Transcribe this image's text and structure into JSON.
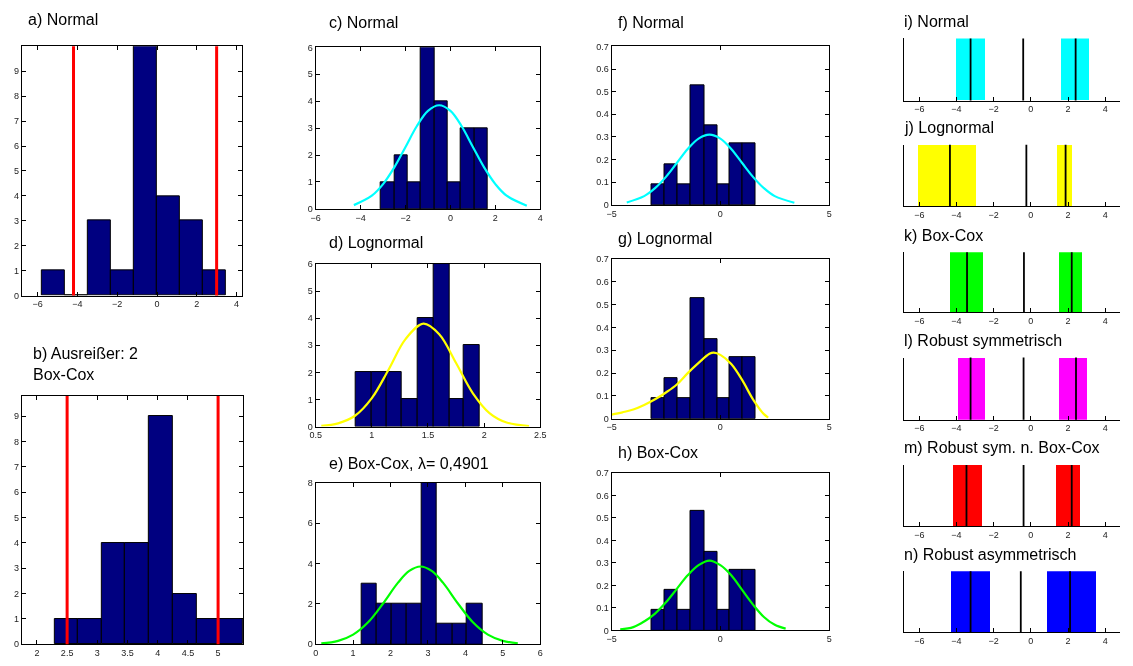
{
  "chart_data": [
    {
      "type": "histogram",
      "title": "a) Normal",
      "bins": [
        -5.79,
        -4.63,
        -3.47,
        -2.31,
        -1.16,
        0,
        1.16,
        2.31,
        3.47
      ],
      "values": [
        1,
        0,
        3,
        1,
        10,
        4,
        3,
        1
      ],
      "color": "#000080",
      "xlim": [
        -6.8,
        4.3
      ],
      "xticks": [
        -6,
        -4,
        -2,
        0,
        2,
        4
      ],
      "ylim": [
        0,
        10
      ],
      "yticks": [
        0,
        1,
        2,
        3,
        4,
        5,
        6,
        7,
        8,
        9
      ],
      "ref_lines": [
        {
          "axis": "x",
          "value": -4.2,
          "color": "#ff0000"
        },
        {
          "axis": "x",
          "value": 3.0,
          "color": "#ff0000"
        }
      ]
    },
    {
      "type": "histogram",
      "title": "b) Ausreißer: 2\nBox-Cox",
      "bins": [
        2.29,
        2.68,
        3.07,
        3.46,
        3.85,
        4.25,
        4.64,
        5.02,
        5.41
      ],
      "values": [
        1,
        1,
        4,
        4,
        9,
        2,
        1,
        1
      ],
      "color": "#000080",
      "xlim": [
        1.75,
        5.42
      ],
      "xticks": [
        2,
        2.5,
        3,
        3.5,
        4,
        4.5,
        5
      ],
      "ylim": [
        0,
        9.8
      ],
      "yticks": [
        0,
        1,
        2,
        3,
        4,
        5,
        6,
        7,
        8,
        9
      ],
      "ref_lines": [
        {
          "axis": "x",
          "value": 2.5,
          "color": "#ff0000"
        },
        {
          "axis": "x",
          "value": 5.0,
          "color": "#ff0000"
        }
      ]
    },
    {
      "type": "histogram",
      "title": "c) Normal",
      "bins": [
        -3.09,
        -2.5,
        -1.9,
        -1.31,
        -0.71,
        -0.12,
        0.47,
        1.06,
        1.66
      ],
      "values": [
        1,
        2,
        1,
        6,
        4,
        1,
        3,
        3
      ],
      "color": "#000080",
      "xlim": [
        -6,
        4
      ],
      "xticks": [
        -6,
        -4,
        -2,
        0,
        2,
        4
      ],
      "ylim": [
        0,
        6
      ],
      "yticks": [
        0,
        1,
        2,
        3,
        4,
        5,
        6
      ],
      "series": [
        {
          "type": "line",
          "color": "#00ffff",
          "x": [
            -4.3,
            -3.5,
            -3,
            -2.5,
            -2,
            -1.5,
            -1,
            -0.5,
            0,
            0.5,
            1,
            1.5,
            2,
            2.5,
            3.4
          ],
          "values": [
            0.14,
            0.49,
            0.92,
            1.54,
            2.3,
            3.07,
            3.64,
            3.85,
            3.64,
            3.07,
            2.3,
            1.54,
            0.92,
            0.49,
            0.12
          ]
        }
      ]
    },
    {
      "type": "histogram",
      "title": "d) Lognormal",
      "bins": [
        0.86,
        1.0,
        1.13,
        1.27,
        1.41,
        1.55,
        1.69,
        1.82,
        1.96
      ],
      "values": [
        2,
        2,
        2,
        1,
        4,
        6,
        1,
        3
      ],
      "color": "#000080",
      "xlim": [
        0.5,
        2.5
      ],
      "xticks": [
        0.5,
        1,
        1.5,
        2,
        2.5
      ],
      "ylim": [
        0,
        6
      ],
      "yticks": [
        0,
        1,
        2,
        3,
        4,
        5,
        6
      ],
      "series": [
        {
          "type": "line",
          "color": "#ffff00",
          "x": [
            0.55,
            0.7,
            0.85,
            1.0,
            1.15,
            1.3,
            1.46,
            1.6,
            1.75,
            1.9,
            2.05,
            2.2,
            2.4
          ],
          "values": [
            0.03,
            0.12,
            0.4,
            1.05,
            2.11,
            3.23,
            3.8,
            3.41,
            2.35,
            1.23,
            0.49,
            0.15,
            0.02
          ]
        }
      ]
    },
    {
      "type": "histogram",
      "title": "e) Box-Cox, λ= 0,4901",
      "bins": [
        1.22,
        1.63,
        2.03,
        2.44,
        2.84,
        3.24,
        3.65,
        4.04,
        4.45
      ],
      "values": [
        3,
        2,
        2,
        2,
        8,
        1,
        1,
        2
      ],
      "color": "#000080",
      "xlim": [
        0,
        6
      ],
      "xticks": [
        0,
        1,
        2,
        3,
        4,
        5,
        6
      ],
      "ylim": [
        0,
        8
      ],
      "yticks": [
        0,
        2,
        4,
        6,
        8
      ],
      "series": [
        {
          "type": "line",
          "color": "#00ff00",
          "x": [
            0.15,
            0.6,
            1.0,
            1.4,
            1.8,
            2.2,
            2.5,
            2.8,
            3.1,
            3.4,
            3.8,
            4.2,
            4.6,
            5.0,
            5.4
          ],
          "values": [
            0.04,
            0.17,
            0.48,
            1.09,
            2.02,
            3.05,
            3.63,
            3.85,
            3.63,
            3.05,
            2.02,
            1.09,
            0.48,
            0.17,
            0.05
          ]
        }
      ]
    },
    {
      "type": "histogram",
      "title": "f) Normal",
      "bins": [
        -3.17,
        -2.57,
        -1.96,
        -1.36,
        -0.75,
        -0.15,
        0.43,
        1.04,
        1.62
      ],
      "values": [
        0.09,
        0.18,
        0.09,
        0.53,
        0.35,
        0.09,
        0.27,
        0.27
      ],
      "color": "#000080",
      "xlim": [
        -5,
        5
      ],
      "xticks": [
        -5,
        0,
        5
      ],
      "ylim": [
        0,
        0.7
      ],
      "yticks": [
        0,
        0.1,
        0.2,
        0.3,
        0.4,
        0.5,
        0.6,
        0.7
      ],
      "series": [
        {
          "type": "line",
          "color": "#00ffff",
          "x": [
            -4.3,
            -3.5,
            -3,
            -2.5,
            -2,
            -1.5,
            -1,
            -0.5,
            0,
            0.5,
            1,
            1.5,
            2,
            2.5,
            3.4
          ],
          "values": [
            0.011,
            0.039,
            0.074,
            0.124,
            0.185,
            0.247,
            0.293,
            0.31,
            0.293,
            0.247,
            0.185,
            0.124,
            0.074,
            0.039,
            0.01
          ]
        }
      ]
    },
    {
      "type": "histogram",
      "title": "g) Lognormal",
      "bins": [
        -3.17,
        -2.57,
        -1.96,
        -1.36,
        -0.75,
        -0.15,
        0.43,
        1.04,
        1.62
      ],
      "values": [
        0.09,
        0.18,
        0.09,
        0.53,
        0.35,
        0.09,
        0.27,
        0.27
      ],
      "color": "#000080",
      "xlim": [
        -5,
        5
      ],
      "xticks": [
        -5,
        0,
        5
      ],
      "ylim": [
        0,
        0.7
      ],
      "yticks": [
        0,
        0.1,
        0.2,
        0.3,
        0.4,
        0.5,
        0.6,
        0.7
      ],
      "series": [
        {
          "type": "line",
          "color": "#ffff00",
          "x": [
            -5,
            -4.5,
            -4,
            -3.5,
            -3,
            -2.5,
            -2,
            -1.5,
            -1,
            -0.5,
            -0.3,
            0,
            0.5,
            1,
            1.5,
            2,
            2.2
          ],
          "values": [
            0.018,
            0.028,
            0.04,
            0.06,
            0.085,
            0.115,
            0.15,
            0.2,
            0.245,
            0.285,
            0.29,
            0.28,
            0.24,
            0.17,
            0.085,
            0.02,
            0.005
          ]
        }
      ]
    },
    {
      "type": "histogram",
      "title": "h) Box-Cox",
      "bins": [
        -3.17,
        -2.57,
        -1.96,
        -1.36,
        -0.75,
        -0.15,
        0.43,
        1.04,
        1.62
      ],
      "values": [
        0.09,
        0.18,
        0.09,
        0.53,
        0.35,
        0.09,
        0.27,
        0.27
      ],
      "color": "#000080",
      "xlim": [
        -5,
        5
      ],
      "xticks": [
        -5,
        0,
        5
      ],
      "ylim": [
        0,
        0.7
      ],
      "yticks": [
        0,
        0.1,
        0.2,
        0.3,
        0.4,
        0.5,
        0.6,
        0.7
      ],
      "series": [
        {
          "type": "line",
          "color": "#00ff00",
          "x": [
            -4.6,
            -4,
            -3.5,
            -3,
            -2.5,
            -2,
            -1.5,
            -1,
            -0.5,
            0,
            0.5,
            1,
            1.5,
            2,
            2.5,
            3
          ],
          "values": [
            0.005,
            0.015,
            0.04,
            0.075,
            0.125,
            0.185,
            0.245,
            0.29,
            0.31,
            0.29,
            0.245,
            0.18,
            0.115,
            0.06,
            0.025,
            0.008
          ]
        }
      ]
    },
    {
      "type": "bar",
      "orientation": "horizontal",
      "title": "i) Normal",
      "categories": [
        null
      ],
      "xlim": [
        -6.8,
        4.8
      ],
      "xticks": [
        -6,
        -4,
        -2,
        0,
        2,
        4
      ],
      "tick_labels": "x",
      "series": [
        {
          "color": "#00ffff",
          "base": [
            -4.0
          ],
          "values": [
            1.54
          ]
        },
        {
          "color": "#00ffff",
          "base": [
            1.63
          ],
          "values": [
            1.54
          ]
        }
      ],
      "ref_lines": [
        {
          "axis": "x",
          "value": -3.24,
          "color": "#000000"
        },
        {
          "axis": "x",
          "value": -0.41,
          "color": "#000000"
        },
        {
          "axis": "x",
          "value": 2.41,
          "color": "#000000"
        }
      ]
    },
    {
      "type": "bar",
      "orientation": "horizontal",
      "title": "j) Lognormal",
      "categories": [
        null
      ],
      "xlim": [
        -6.8,
        4.8
      ],
      "xticks": [
        -6,
        -4,
        -2,
        0,
        2,
        4
      ],
      "tick_labels": "x",
      "series": [
        {
          "color": "#ffff00",
          "base": [
            -6.07
          ],
          "values": [
            3.16
          ]
        },
        {
          "color": "#ffff00",
          "base": [
            1.43
          ],
          "values": [
            0.79
          ]
        }
      ],
      "ref_lines": [
        {
          "axis": "x",
          "value": -4.35,
          "color": "#000000"
        },
        {
          "axis": "x",
          "value": -0.24,
          "color": "#000000"
        },
        {
          "axis": "x",
          "value": 1.87,
          "color": "#000000"
        }
      ]
    },
    {
      "type": "bar",
      "orientation": "horizontal",
      "title": "k) Box-Cox",
      "categories": [
        null
      ],
      "xlim": [
        -6.8,
        4.8
      ],
      "xticks": [
        -6,
        -4,
        -2,
        0,
        2,
        4
      ],
      "tick_labels": "x",
      "series": [
        {
          "color": "#00ff00",
          "base": [
            -4.33
          ],
          "values": [
            1.79
          ]
        },
        {
          "color": "#00ff00",
          "base": [
            1.54
          ],
          "values": [
            1.22
          ]
        }
      ],
      "ref_lines": [
        {
          "axis": "x",
          "value": -3.43,
          "color": "#000000"
        },
        {
          "axis": "x",
          "value": -0.37,
          "color": "#000000"
        },
        {
          "axis": "x",
          "value": 2.2,
          "color": "#000000"
        }
      ]
    },
    {
      "type": "bar",
      "orientation": "horizontal",
      "title": "l) Robust symmetrisch",
      "categories": [
        null
      ],
      "xlim": [
        -6.8,
        4.8
      ],
      "xticks": [
        -6,
        -4,
        -2,
        0,
        2,
        4
      ],
      "tick_labels": "x",
      "series": [
        {
          "color": "#ff00ff",
          "base": [
            -3.89
          ],
          "values": [
            1.46
          ]
        },
        {
          "color": "#ff00ff",
          "base": [
            1.52
          ],
          "values": [
            1.5
          ]
        }
      ],
      "ref_lines": [
        {
          "axis": "x",
          "value": -3.24,
          "color": "#000000"
        },
        {
          "axis": "x",
          "value": -0.39,
          "color": "#000000"
        },
        {
          "axis": "x",
          "value": 2.43,
          "color": "#000000"
        }
      ]
    },
    {
      "type": "bar",
      "orientation": "horizontal",
      "title": "m) Robust sym. n. Box-Cox",
      "categories": [
        null
      ],
      "xlim": [
        -6.8,
        4.8
      ],
      "xticks": [
        -6,
        -4,
        -2,
        0,
        2,
        4
      ],
      "tick_labels": "x",
      "series": [
        {
          "color": "#ff0000",
          "base": [
            -4.17
          ],
          "values": [
            1.56
          ]
        },
        {
          "color": "#ff0000",
          "base": [
            1.39
          ],
          "values": [
            1.26
          ]
        }
      ],
      "ref_lines": [
        {
          "axis": "x",
          "value": -3.46,
          "color": "#000000"
        },
        {
          "axis": "x",
          "value": -0.39,
          "color": "#000000"
        },
        {
          "axis": "x",
          "value": 2.2,
          "color": "#000000"
        }
      ]
    },
    {
      "type": "bar",
      "orientation": "horizontal",
      "title": "n) Robust asymmetrisch",
      "categories": [
        null
      ],
      "xlim": [
        -6.8,
        4.8
      ],
      "xticks": [
        -6,
        -4,
        -2,
        0,
        2,
        4
      ],
      "tick_labels": "x",
      "series": [
        {
          "color": "#0000ff",
          "base": [
            -4.26
          ],
          "values": [
            2.11
          ]
        },
        {
          "color": "#0000ff",
          "base": [
            0.89
          ],
          "values": [
            2.63
          ]
        }
      ],
      "ref_lines": [
        {
          "axis": "x",
          "value": -3.24,
          "color": "#000000"
        },
        {
          "axis": "x",
          "value": -0.54,
          "color": "#000000"
        },
        {
          "axis": "x",
          "value": 2.11,
          "color": "#000000"
        }
      ]
    }
  ]
}
